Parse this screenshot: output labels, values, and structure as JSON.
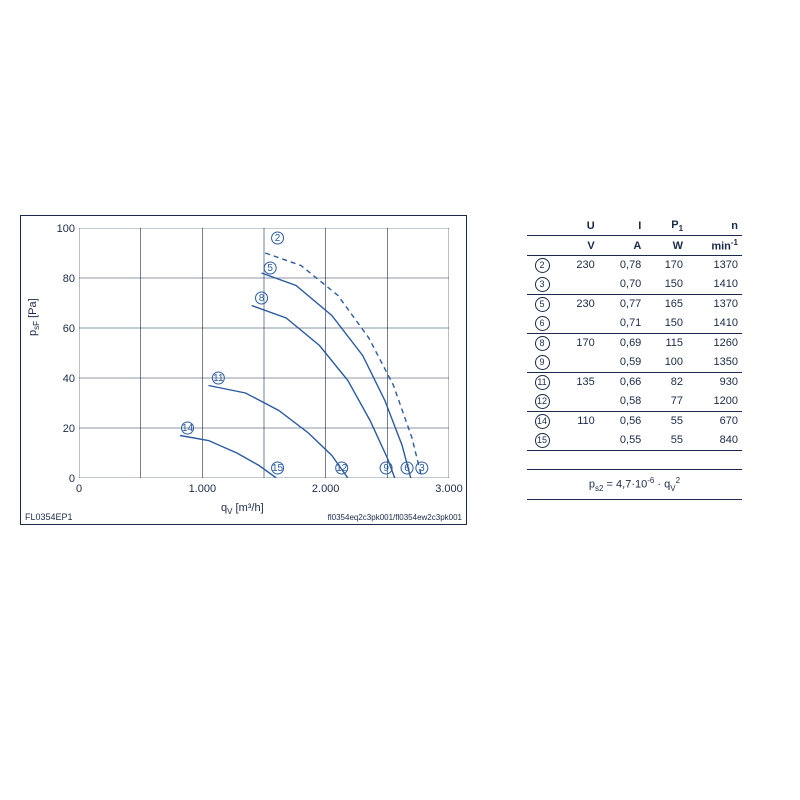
{
  "chart": {
    "type": "line",
    "xlabel": "q_V [m³/h]",
    "ylabel": "p_sF [Pa]",
    "xlim": [
      0,
      3000
    ],
    "ylim": [
      0,
      100
    ],
    "xticks": [
      0,
      1000,
      2000,
      3000
    ],
    "xtick_labels": [
      "0",
      "1.000",
      "2.000",
      "3.000"
    ],
    "xminor": [
      500,
      1500,
      2500
    ],
    "yticks": [
      0,
      20,
      40,
      60,
      80,
      100
    ],
    "curve_color": "#2b5aa0",
    "grid_color": "#1a2a4a",
    "background_color": "#ffffff",
    "footer_left": "FL0354EP1",
    "footer_right": "fl0354eq2c3pk001/fl0354ew2c3pk001",
    "curves": [
      {
        "id": "2",
        "dashed": true,
        "label_xy": [
          1610,
          96
        ],
        "pts": [
          [
            1510,
            90
          ],
          [
            1800,
            85
          ],
          [
            2100,
            73
          ],
          [
            2350,
            56
          ],
          [
            2550,
            37
          ],
          [
            2700,
            16
          ],
          [
            2780,
            0
          ]
        ]
      },
      {
        "id": "5",
        "dashed": false,
        "label_xy": [
          1550,
          84
        ],
        "pts": [
          [
            1480,
            82
          ],
          [
            1760,
            77
          ],
          [
            2050,
            65
          ],
          [
            2300,
            49
          ],
          [
            2480,
            31
          ],
          [
            2620,
            13
          ],
          [
            2690,
            0
          ]
        ]
      },
      {
        "id": "8",
        "dashed": false,
        "label_xy": [
          1480,
          72
        ],
        "pts": [
          [
            1400,
            69
          ],
          [
            1680,
            64
          ],
          [
            1950,
            53
          ],
          [
            2180,
            39
          ],
          [
            2360,
            23
          ],
          [
            2500,
            8
          ],
          [
            2560,
            0
          ]
        ]
      },
      {
        "id": "11",
        "dashed": false,
        "label_xy": [
          1130,
          40
        ],
        "pts": [
          [
            1050,
            37
          ],
          [
            1350,
            34
          ],
          [
            1620,
            27
          ],
          [
            1860,
            18
          ],
          [
            2050,
            9
          ],
          [
            2180,
            0
          ]
        ]
      },
      {
        "id": "14",
        "dashed": false,
        "label_xy": [
          880,
          20
        ],
        "pts": [
          [
            820,
            17
          ],
          [
            1050,
            15
          ],
          [
            1280,
            10
          ],
          [
            1460,
            5
          ],
          [
            1600,
            0
          ]
        ]
      }
    ],
    "end_markers": [
      {
        "id": "3",
        "xy": [
          2780,
          4
        ]
      },
      {
        "id": "6",
        "xy": [
          2660,
          4
        ]
      },
      {
        "id": "9",
        "xy": [
          2490,
          4
        ]
      },
      {
        "id": "12",
        "xy": [
          2130,
          4
        ]
      },
      {
        "id": "15",
        "xy": [
          1610,
          4
        ]
      }
    ]
  },
  "table": {
    "header_top": [
      "U",
      "I",
      "P₁",
      "n"
    ],
    "header_units": [
      "V",
      "A",
      "W",
      "min⁻¹"
    ],
    "groups": [
      [
        {
          "id": "2",
          "U": "230",
          "I": "0,78",
          "P": "170",
          "n": "1370"
        },
        {
          "id": "3",
          "U": "",
          "I": "0,70",
          "P": "150",
          "n": "1410"
        }
      ],
      [
        {
          "id": "5",
          "U": "230",
          "I": "0,77",
          "P": "165",
          "n": "1370"
        },
        {
          "id": "6",
          "U": "",
          "I": "0,71",
          "P": "150",
          "n": "1410"
        }
      ],
      [
        {
          "id": "8",
          "U": "170",
          "I": "0,69",
          "P": "115",
          "n": "1260"
        },
        {
          "id": "9",
          "U": "",
          "I": "0,59",
          "P": "100",
          "n": "1350"
        }
      ],
      [
        {
          "id": "11",
          "U": "135",
          "I": "0,66",
          "P": "82",
          "n": "930"
        },
        {
          "id": "12",
          "U": "",
          "I": "0,58",
          "P": "77",
          "n": "1200"
        }
      ],
      [
        {
          "id": "14",
          "U": "110",
          "I": "0,56",
          "P": "55",
          "n": "670"
        },
        {
          "id": "15",
          "U": "",
          "I": "0,55",
          "P": "55",
          "n": "840"
        }
      ]
    ]
  },
  "formula": "p_s2 = 4,7·10⁻⁶ · q_V²"
}
